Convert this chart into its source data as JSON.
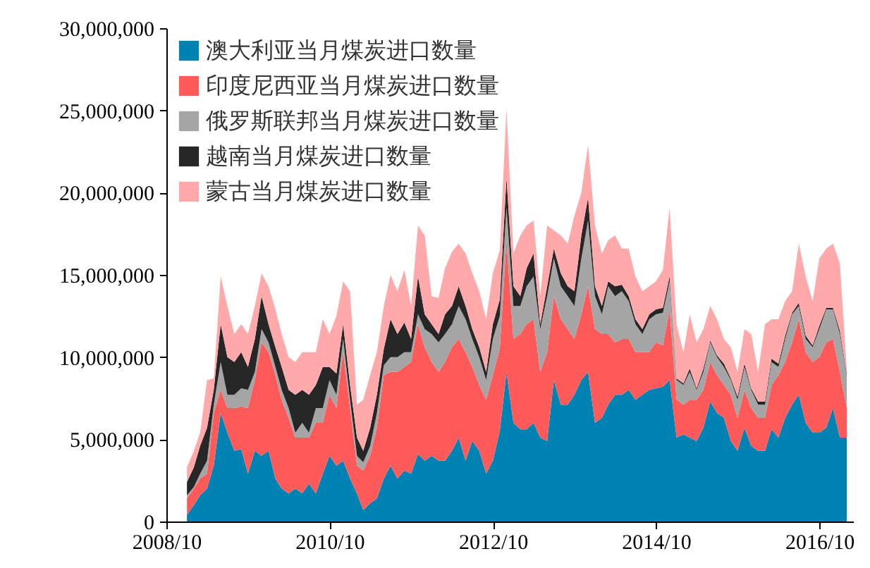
{
  "chart_data": {
    "type": "area",
    "stacked": true,
    "legend": "top left",
    "x": [
      "2009-01",
      "2009-02",
      "2009-03",
      "2009-04",
      "2009-05",
      "2009-06",
      "2009-07",
      "2009-08",
      "2009-09",
      "2009-10",
      "2009-11",
      "2009-12",
      "2010-01",
      "2010-02",
      "2010-03",
      "2010-04",
      "2010-05",
      "2010-06",
      "2010-07",
      "2010-08",
      "2010-09",
      "2010-10",
      "2010-11",
      "2010-12",
      "2011-01",
      "2011-02",
      "2011-03",
      "2011-04",
      "2011-05",
      "2011-06",
      "2011-07",
      "2011-08",
      "2011-09",
      "2011-10",
      "2011-11",
      "2011-12",
      "2012-01",
      "2012-02",
      "2012-03",
      "2012-04",
      "2012-05",
      "2012-06",
      "2012-07",
      "2012-08",
      "2012-09",
      "2012-10",
      "2012-11",
      "2012-12",
      "2013-01",
      "2013-02",
      "2013-03",
      "2013-04",
      "2013-05",
      "2013-06",
      "2013-07",
      "2013-08",
      "2013-09",
      "2013-10",
      "2013-11",
      "2013-12",
      "2014-01",
      "2014-02",
      "2014-03",
      "2014-04",
      "2014-05",
      "2014-06",
      "2014-07",
      "2014-08",
      "2014-09",
      "2014-10",
      "2014-11",
      "2014-12",
      "2015-01",
      "2015-02",
      "2015-03",
      "2015-04",
      "2015-05",
      "2015-06",
      "2015-07",
      "2015-08",
      "2015-09",
      "2015-10",
      "2015-11",
      "2015-12",
      "2016-01",
      "2016-02",
      "2016-03",
      "2016-04",
      "2016-05",
      "2016-06",
      "2016-07",
      "2016-08",
      "2016-09",
      "2016-10",
      "2016-11",
      "2016-12",
      "2017-01",
      "2017-02"
    ],
    "xlim": [
      "2008-10",
      "2017-03"
    ],
    "xticks": [
      {
        "value": "2008-10",
        "label": "2008/10"
      },
      {
        "value": "2010-10",
        "label": "2010/10"
      },
      {
        "value": "2012-10",
        "label": "2012/10"
      },
      {
        "value": "2014-10",
        "label": "2014/10"
      },
      {
        "value": "2016-10",
        "label": "2016/10"
      }
    ],
    "ylim": [
      0,
      30000000
    ],
    "yticks": [
      {
        "value": 0,
        "label": "0"
      },
      {
        "value": 5000000,
        "label": "5,000,000"
      },
      {
        "value": 10000000,
        "label": "10,000,000"
      },
      {
        "value": 15000000,
        "label": "15,000,000"
      },
      {
        "value": 20000000,
        "label": "20,000,000"
      },
      {
        "value": 25000000,
        "label": "25,000,000"
      },
      {
        "value": 30000000,
        "label": "30,000,000"
      }
    ],
    "series": [
      {
        "name": "澳大利亚当月煤炭进口数量",
        "color": "#0083b3",
        "values": [
          400000,
          1000000,
          1600000,
          2000000,
          3400000,
          6600000,
          5400000,
          4300000,
          4400000,
          2900000,
          4300000,
          4000000,
          4300000,
          2600000,
          2000000,
          1700000,
          2000000,
          1700000,
          2300000,
          1700000,
          2900000,
          4000000,
          3400000,
          3700000,
          2600000,
          1700000,
          700000,
          1100000,
          1400000,
          2600000,
          3400000,
          2600000,
          3100000,
          2900000,
          4100000,
          3700000,
          4000000,
          3700000,
          3700000,
          4300000,
          5100000,
          3700000,
          4900000,
          4300000,
          2900000,
          3700000,
          5500000,
          9100000,
          6000000,
          5600000,
          5600000,
          6000000,
          5100000,
          4900000,
          8600000,
          7100000,
          7100000,
          7700000,
          8600000,
          9100000,
          6000000,
          6300000,
          7100000,
          7700000,
          7700000,
          8000000,
          7400000,
          7700000,
          8000000,
          8100000,
          8200000,
          8600000,
          5100000,
          5300000,
          5100000,
          4900000,
          5700000,
          7300000,
          6600000,
          6300000,
          4900000,
          4300000,
          5700000,
          4600000,
          4300000,
          4300000,
          5600000,
          5100000,
          6300000,
          7100000,
          7700000,
          6000000,
          5400000,
          5400000,
          5700000,
          6900000,
          5100000,
          5100000
        ]
      },
      {
        "name": "印度尼西亚当月煤炭进口数量",
        "color": "#ff5a5a",
        "values": [
          1000000,
          1000000,
          1000000,
          900000,
          3200000,
          1400000,
          1500000,
          2600000,
          2600000,
          4000000,
          4300000,
          6900000,
          6000000,
          6300000,
          5400000,
          4600000,
          3100000,
          3400000,
          2800000,
          4300000,
          3100000,
          3700000,
          3500000,
          6600000,
          4300000,
          1700000,
          2400000,
          2900000,
          4300000,
          6300000,
          5700000,
          6500000,
          6300000,
          6800000,
          7900000,
          6900000,
          5700000,
          5400000,
          6000000,
          6300000,
          6000000,
          6600000,
          4500000,
          4000000,
          4500000,
          5200000,
          5000000,
          8000000,
          5100000,
          5800000,
          6400000,
          6300000,
          4000000,
          5400000,
          5100000,
          5200000,
          4600000,
          3400000,
          4000000,
          5200000,
          5700000,
          5100000,
          4300000,
          3200000,
          3400000,
          3100000,
          2900000,
          2600000,
          2300000,
          2800000,
          2500000,
          4300000,
          2300000,
          1800000,
          2300000,
          2500000,
          2300000,
          2400000,
          2300000,
          2000000,
          2800000,
          2000000,
          2300000,
          2300000,
          2000000,
          2000000,
          2700000,
          3800000,
          3400000,
          3800000,
          4600000,
          4300000,
          4300000,
          4600000,
          5200000,
          4200000,
          4000000,
          1800000
        ]
      },
      {
        "name": "俄罗斯联邦当月煤炭进口数量",
        "color": "#a5a5a5",
        "values": [
          200000,
          100000,
          300000,
          800000,
          500000,
          1700000,
          800000,
          800000,
          1100000,
          1100000,
          500000,
          800000,
          600000,
          500000,
          600000,
          600000,
          300000,
          900000,
          300000,
          900000,
          900000,
          900000,
          800000,
          800000,
          500000,
          600000,
          500000,
          600000,
          900000,
          600000,
          900000,
          900000,
          900000,
          600000,
          600000,
          1100000,
          1700000,
          1800000,
          1700000,
          1400000,
          2000000,
          2000000,
          1700000,
          1700000,
          1200000,
          2200000,
          2000000,
          2000000,
          2000000,
          1700000,
          2300000,
          2600000,
          2600000,
          3400000,
          2300000,
          2000000,
          2000000,
          2000000,
          3400000,
          4000000,
          2000000,
          1200000,
          2900000,
          2800000,
          2900000,
          2300000,
          1700000,
          1100000,
          2000000,
          1700000,
          2000000,
          1700000,
          1200000,
          1200000,
          1700000,
          600000,
          1100000,
          1200000,
          1100000,
          1100000,
          900000,
          1100000,
          1400000,
          1100000,
          800000,
          800000,
          1400000,
          500000,
          1400000,
          1700000,
          800000,
          800000,
          900000,
          1700000,
          2000000,
          1800000,
          2300000,
          2000000
        ]
      },
      {
        "name": "越南当月煤炭进口数量",
        "color": "#262626",
        "values": [
          800000,
          1200000,
          1700000,
          2000000,
          900000,
          2300000,
          2300000,
          2000000,
          2200000,
          1400000,
          2000000,
          2000000,
          1100000,
          1200000,
          1400000,
          1100000,
          2300000,
          2000000,
          2300000,
          1400000,
          2500000,
          800000,
          1300000,
          900000,
          900000,
          1100000,
          700000,
          1100000,
          1100000,
          1000000,
          2300000,
          1400000,
          1800000,
          800000,
          2300000,
          900000,
          600000,
          500000,
          1200000,
          1100000,
          1200000,
          800000,
          600000,
          600000,
          500000,
          900000,
          1000000,
          1800000,
          1200000,
          600000,
          1100000,
          1400000,
          300000,
          600000,
          600000,
          800000,
          600000,
          900000,
          1400000,
          1400000,
          600000,
          500000,
          300000,
          600000,
          400000,
          300000,
          300000,
          300000,
          300000,
          300000,
          300000,
          300000,
          100000,
          100000,
          200000,
          100000,
          200000,
          100000,
          100000,
          200000,
          100000,
          200000,
          200000,
          100000,
          200000,
          200000,
          200000,
          200000,
          200000,
          100000,
          200000,
          200000,
          100000,
          200000,
          100000,
          100000,
          200000,
          100000
        ]
      },
      {
        "name": "蒙古当月煤炭进口数量",
        "color": "#ffa9ab",
        "values": [
          900000,
          1000000,
          800000,
          2900000,
          700000,
          2900000,
          3100000,
          1700000,
          1700000,
          2000000,
          2000000,
          1400000,
          2300000,
          2300000,
          2000000,
          2000000,
          2000000,
          2300000,
          2600000,
          2000000,
          2900000,
          2000000,
          3500000,
          2600000,
          5700000,
          2000000,
          3100000,
          3200000,
          2600000,
          2600000,
          2700000,
          2600000,
          3200000,
          2000000,
          3100000,
          4800000,
          1700000,
          2200000,
          2800000,
          3300000,
          2600000,
          3200000,
          3400000,
          3400000,
          3200000,
          3100000,
          3000000,
          4200000,
          2000000,
          3700000,
          2600000,
          2000000,
          1700000,
          3700000,
          1100000,
          2300000,
          2600000,
          4600000,
          2600000,
          3200000,
          3700000,
          3200000,
          2500000,
          3100000,
          2200000,
          2900000,
          2600000,
          2300000,
          1700000,
          1700000,
          2300000,
          4200000,
          3300000,
          1900000,
          3300000,
          2800000,
          2400000,
          2100000,
          2200000,
          1500000,
          1900000,
          1500000,
          2100000,
          3300000,
          1800000,
          4700000,
          2400000,
          2700000,
          2100000,
          1300000,
          3600000,
          3600000,
          2700000,
          4100000,
          3600000,
          3900000,
          4100000,
          200000
        ]
      }
    ]
  }
}
